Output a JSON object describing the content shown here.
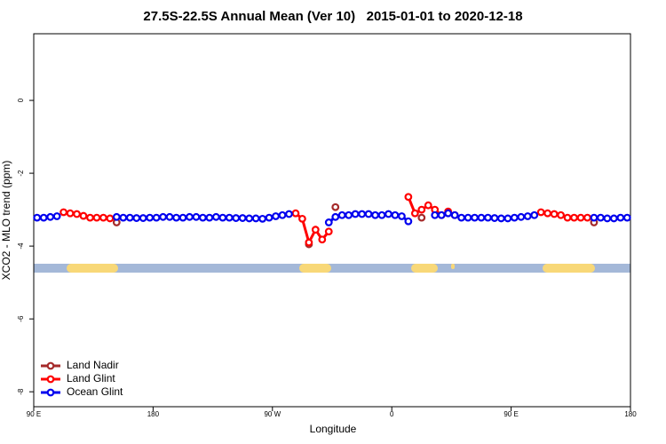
{
  "chart_data": {
    "type": "line",
    "title": "27.5S-22.5S Annual Mean (Ver 10)   2015-01-01 to 2020-12-18",
    "x_label": "Longitude",
    "y_label": "XCO2 - MLO trend (ppm)",
    "xlim": [
      90,
      540
    ],
    "xticks": [
      {
        "value": 90,
        "label": "90 E"
      },
      {
        "value": 180,
        "label": "180"
      },
      {
        "value": 270,
        "label": "90 W"
      },
      {
        "value": 360,
        "label": "0"
      },
      {
        "value": 450,
        "label": "90 E"
      },
      {
        "value": 540,
        "label": "180"
      }
    ],
    "ylim": [
      -8.41,
      1.83
    ],
    "yticks": [
      0,
      -2,
      -4,
      -6,
      -8
    ],
    "legend": "bottom-left",
    "x": [
      92.5,
      97.5,
      102.5,
      107.5,
      112.5,
      117.5,
      122.5,
      127.5,
      132.5,
      137.5,
      142.5,
      147.5,
      152.5,
      157.5,
      162.5,
      167.5,
      172.5,
      177.5,
      182.5,
      187.5,
      192.5,
      197.5,
      202.5,
      207.5,
      212.5,
      217.5,
      222.5,
      227.5,
      232.5,
      237.5,
      242.5,
      247.5,
      252.5,
      257.5,
      262.5,
      267.5,
      272.5,
      277.5,
      282.5,
      287.5,
      292.5,
      297.5,
      302.5,
      307.5,
      312.5,
      317.5,
      322.5,
      327.5,
      332.5,
      337.5,
      342.5,
      347.5,
      352.5,
      357.5,
      362.5,
      367.5,
      372.5,
      377.5,
      382.5,
      387.5,
      392.5,
      397.5,
      402.5,
      407.5,
      412.5,
      417.5,
      422.5,
      427.5,
      432.5,
      437.5,
      442.5,
      447.5,
      452.5,
      457.5,
      462.5,
      467.5,
      472.5,
      477.5,
      482.5,
      487.5,
      492.5,
      497.5,
      502.5,
      507.5,
      512.5,
      517.5,
      522.5,
      527.5,
      532.5,
      537.5
    ],
    "series": [
      {
        "name": "Land Nadir",
        "color": "#a52a2a",
        "values": [
          null,
          null,
          null,
          null,
          null,
          null,
          null,
          null,
          null,
          null,
          null,
          null,
          -3.35,
          null,
          null,
          null,
          null,
          null,
          null,
          null,
          null,
          null,
          null,
          null,
          null,
          null,
          null,
          null,
          null,
          null,
          null,
          null,
          null,
          null,
          null,
          null,
          null,
          null,
          null,
          null,
          null,
          -3.95,
          null,
          null,
          null,
          -2.93,
          null,
          null,
          null,
          null,
          null,
          null,
          null,
          null,
          null,
          null,
          null,
          null,
          -3.22,
          null,
          null,
          null,
          null,
          null,
          null,
          null,
          null,
          null,
          null,
          null,
          null,
          null,
          null,
          null,
          null,
          null,
          null,
          null,
          null,
          null,
          null,
          null,
          null,
          null,
          -3.35,
          null,
          null,
          null,
          null,
          null
        ]
      },
      {
        "name": "Land Glint",
        "color": "#ff0000",
        "values": [
          null,
          null,
          null,
          null,
          -3.07,
          -3.1,
          -3.12,
          -3.17,
          -3.22,
          -3.22,
          -3.22,
          -3.24,
          null,
          null,
          null,
          null,
          null,
          null,
          null,
          null,
          null,
          null,
          null,
          null,
          null,
          null,
          null,
          null,
          null,
          null,
          null,
          null,
          null,
          null,
          null,
          null,
          null,
          null,
          null,
          -3.1,
          -3.25,
          -3.9,
          -3.55,
          -3.82,
          -3.6,
          null,
          null,
          null,
          null,
          null,
          null,
          null,
          null,
          null,
          null,
          null,
          -2.65,
          -3.1,
          -3.0,
          -2.88,
          -3.0,
          -3.15,
          -3.05,
          -3.15,
          null,
          null,
          null,
          null,
          null,
          null,
          null,
          null,
          null,
          null,
          null,
          null,
          -3.07,
          -3.1,
          -3.12,
          -3.15,
          -3.22,
          -3.22,
          -3.22,
          -3.22,
          null,
          null,
          null,
          null,
          null,
          null
        ]
      },
      {
        "name": "Ocean Glint",
        "color": "#0000ee",
        "values": [
          -3.22,
          -3.22,
          -3.2,
          -3.18,
          null,
          null,
          null,
          null,
          null,
          null,
          null,
          null,
          -3.2,
          -3.22,
          -3.22,
          -3.23,
          -3.23,
          -3.22,
          -3.22,
          -3.2,
          -3.2,
          -3.22,
          -3.22,
          -3.2,
          -3.2,
          -3.22,
          -3.22,
          -3.2,
          -3.22,
          -3.22,
          -3.23,
          -3.23,
          -3.24,
          -3.24,
          -3.25,
          -3.22,
          -3.18,
          -3.15,
          -3.12,
          null,
          null,
          null,
          null,
          null,
          -3.35,
          -3.2,
          -3.15,
          -3.15,
          -3.12,
          -3.12,
          -3.12,
          -3.15,
          -3.15,
          -3.12,
          -3.15,
          -3.18,
          -3.32,
          null,
          null,
          null,
          -3.15,
          -3.15,
          -3.1,
          -3.15,
          -3.22,
          -3.22,
          -3.22,
          -3.22,
          -3.22,
          -3.23,
          -3.24,
          -3.24,
          -3.22,
          -3.2,
          -3.18,
          -3.15,
          null,
          null,
          null,
          null,
          null,
          null,
          null,
          null,
          -3.22,
          -3.22,
          -3.24,
          -3.24,
          -3.22,
          -3.22
        ]
      }
    ]
  }
}
